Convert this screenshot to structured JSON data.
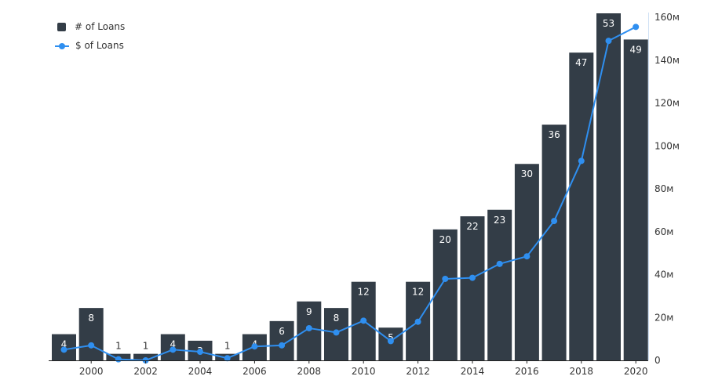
{
  "legend": {
    "bars_label": "# of Loans",
    "line_label": "$ of Loans"
  },
  "chart_data": {
    "type": "bar",
    "x": [
      1999,
      2000,
      2001,
      2002,
      2003,
      2004,
      2005,
      2006,
      2007,
      2008,
      2009,
      2010,
      2011,
      2012,
      2013,
      2014,
      2015,
      2016,
      2017,
      2018,
      2019,
      2020
    ],
    "series": [
      {
        "name": "# of Loans",
        "type": "bar",
        "values": [
          4,
          8,
          1,
          1,
          4,
          3,
          1,
          4,
          6,
          9,
          8,
          12,
          5,
          12,
          20,
          22,
          23,
          30,
          36,
          47,
          53,
          49
        ]
      },
      {
        "name": "$ of Loans",
        "type": "line",
        "axis": "right",
        "values": [
          5,
          7,
          0.5,
          0,
          5,
          4,
          1,
          6.5,
          7,
          15,
          13,
          18.5,
          9,
          18,
          38,
          38.5,
          45,
          48.5,
          65,
          93,
          149,
          155.5
        ]
      }
    ],
    "x_ticks": [
      "2000",
      "2002",
      "2004",
      "2006",
      "2008",
      "2010",
      "2012",
      "2014",
      "2016",
      "2018",
      "2020"
    ],
    "x_tick_values": [
      2000,
      2002,
      2004,
      2006,
      2008,
      2010,
      2012,
      2014,
      2016,
      2018,
      2020
    ],
    "y_right_ticks": [
      "0",
      "20м",
      "40м",
      "60м",
      "80м",
      "100м",
      "120м",
      "140м",
      "160м"
    ],
    "y_right_tick_values": [
      0,
      20,
      40,
      60,
      80,
      100,
      120,
      140,
      160
    ],
    "y_right_lim": [
      0,
      160
    ],
    "y_left_lim": [
      0,
      53
    ],
    "grid": false,
    "legend_position": "top-left",
    "colors": {
      "bar": "#333d47",
      "line": "#2f8ff0",
      "label_on_bar": "#ffffff",
      "label_outside": "#333333"
    }
  }
}
